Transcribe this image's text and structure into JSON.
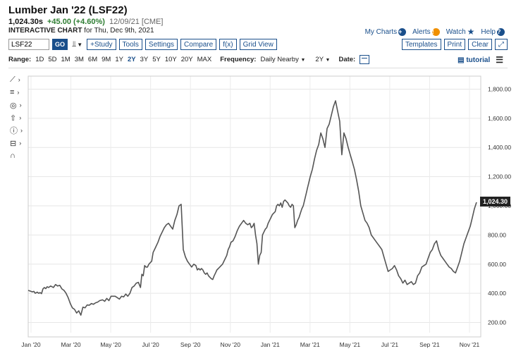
{
  "header": {
    "title": "Lumber Jan '22 (LSF22)",
    "price": "1,024.30s",
    "change": "+45.00 (+4.60%)",
    "meta": "12/09/21 [CME]",
    "chart_label": "INTERACTIVE CHART",
    "chart_date": "for Thu, Dec 9th, 2021"
  },
  "toplinks": {
    "my_charts": "My Charts",
    "alerts": "Alerts",
    "watch": "Watch",
    "help": "Help"
  },
  "toolbar": {
    "symbol_value": "LSF22",
    "go": "GO",
    "study": "+Study",
    "tools": "Tools",
    "settings": "Settings",
    "compare": "Compare",
    "fx": "f(x)",
    "grid_view": "Grid View",
    "templates": "Templates",
    "print": "Print",
    "clear": "Clear"
  },
  "range_bar": {
    "range_label": "Range:",
    "ranges": [
      "1D",
      "5D",
      "1M",
      "3M",
      "6M",
      "9M",
      "1Y",
      "2Y",
      "3Y",
      "5Y",
      "10Y",
      "20Y",
      "MAX"
    ],
    "active_range": "2Y",
    "frequency_label": "Frequency:",
    "frequency_value": "Daily Nearby",
    "period_value": "2Y",
    "date_label": "Date:",
    "tutorial": "tutorial"
  },
  "chart_data": {
    "type": "line",
    "last_price_label": "1,024.30",
    "y_ticks": [
      "1,800.00",
      "1,600.00",
      "1,400.00",
      "1,200.00",
      "1,000.00",
      "800.00",
      "600.00",
      "400.00",
      "200.00"
    ],
    "y_tick_values": [
      1800,
      1600,
      1400,
      1200,
      1000,
      800,
      600,
      400,
      200
    ],
    "ylim": [
      130,
      1870
    ],
    "x_ticks": [
      "Jan '20",
      "Mar '20",
      "May '20",
      "Jul '20",
      "Sep '20",
      "Nov '20",
      "Jan '21",
      "Mar '21",
      "May '21",
      "Jul '21",
      "Sep '21",
      "Nov '21"
    ],
    "series": [
      {
        "x": [
          0,
          3,
          6,
          8,
          10,
          13,
          15,
          17,
          19,
          21,
          23,
          25,
          27,
          29,
          32,
          36,
          39,
          42,
          45,
          48,
          51,
          54,
          57,
          60,
          63,
          66,
          69,
          72,
          75,
          78,
          81,
          84,
          87,
          90,
          93,
          96,
          99,
          102,
          106,
          109,
          112,
          115,
          118,
          121,
          124,
          127,
          130,
          133,
          136,
          139,
          142,
          145,
          148,
          151,
          154,
          157,
          160,
          162,
          164,
          166,
          168,
          170,
          172,
          174,
          176,
          178,
          180,
          182,
          185,
          188,
          191,
          194,
          197,
          200,
          203,
          206,
          209,
          212,
          215,
          218,
          221,
          224,
          227,
          230,
          233,
          236,
          239,
          241,
          243,
          245,
          247,
          249,
          251,
          253,
          255,
          257,
          259,
          261,
          263,
          265,
          267,
          269,
          271,
          273,
          275,
          277,
          279,
          281,
          283,
          285,
          287,
          289,
          292,
          295,
          298,
          301,
          304,
          307,
          310,
          313,
          316,
          318,
          320,
          322,
          324,
          326,
          328,
          330,
          332,
          334,
          336,
          338,
          340,
          342,
          344,
          346,
          348,
          350,
          352,
          354,
          356,
          358,
          360,
          362,
          364,
          366,
          368,
          370,
          372,
          374,
          376,
          378,
          380,
          382,
          384,
          386,
          388,
          390,
          392,
          394,
          396,
          398,
          400,
          402,
          405,
          408,
          411,
          414,
          417,
          420,
          423,
          426,
          429,
          432,
          435,
          438,
          441,
          444,
          447,
          450,
          453,
          456,
          459,
          462,
          465,
          468,
          471,
          474,
          477,
          480,
          483,
          486,
          489,
          492,
          495,
          498,
          501,
          504,
          507,
          510,
          513,
          516,
          519,
          522,
          525,
          528,
          531,
          534,
          537,
          540,
          543,
          546,
          549,
          552,
          555,
          558,
          561,
          564,
          567,
          570,
          573,
          576,
          579,
          582,
          585,
          588,
          591,
          594,
          597,
          600,
          603,
          606,
          609,
          612,
          615,
          618,
          621,
          624,
          627,
          630,
          633,
          636,
          639
        ],
        "y": [
          420,
          415,
          410,
          413,
          400,
          408,
          400,
          405,
          398,
          430,
          440,
          432,
          445,
          440,
          450,
          440,
          460,
          450,
          455,
          430,
          420,
          400,
          370,
          330,
          300,
          290,
          265,
          280,
          250,
          305,
          300,
          320,
          318,
          330,
          325,
          335,
          340,
          350,
          355,
          345,
          365,
          350,
          380,
          380,
          380,
          370,
          360,
          380,
          375,
          395,
          380,
          400,
          440,
          450,
          470,
          475,
          440,
          530,
          520,
          590,
          580,
          580,
          600,
          610,
          620,
          680,
          700,
          720,
          750,
          790,
          820,
          850,
          870,
          880,
          860,
          840,
          900,
          940,
          1000,
          1010,
          700,
          650,
          620,
          600,
          580,
          600,
          590,
          560,
          570,
          560,
          570,
          560,
          540,
          530,
          540,
          520,
          510,
          500,
          495,
          520,
          540,
          560,
          570,
          580,
          590,
          600,
          620,
          640,
          660,
          700,
          720,
          750,
          760,
          790,
          830,
          860,
          880,
          900,
          880,
          870,
          880,
          850,
          860,
          880,
          800,
          740,
          600,
          660,
          680,
          800,
          820,
          840,
          850,
          880,
          900,
          920,
          940,
          950,
          960,
          1000,
          1010,
          1000,
          1020,
          990,
          1030,
          1040,
          1030,
          1020,
          1000,
          990,
          1010,
          1000,
          850,
          870,
          900,
          920,
          950,
          980,
          1000,
          1040,
          1080,
          1120,
          1160,
          1200,
          1250,
          1320,
          1380,
          1420,
          1500,
          1460,
          1400,
          1530,
          1560,
          1620,
          1680,
          1720,
          1650,
          1580,
          1350,
          1500,
          1460,
          1400,
          1350,
          1300,
          1250,
          1180,
          1100,
          1000,
          950,
          900,
          880,
          850,
          800,
          780,
          760,
          740,
          720,
          700,
          650,
          600,
          550,
          560,
          570,
          590,
          560,
          520,
          500,
          470,
          490,
          460,
          470,
          480,
          460,
          470,
          520,
          540,
          580,
          590,
          600,
          640,
          680,
          700,
          740,
          760,
          700,
          660,
          640,
          620,
          600,
          580,
          570,
          550,
          540,
          580,
          620,
          680,
          740,
          780,
          820,
          860,
          920,
          980,
          1024
        ]
      }
    ]
  }
}
